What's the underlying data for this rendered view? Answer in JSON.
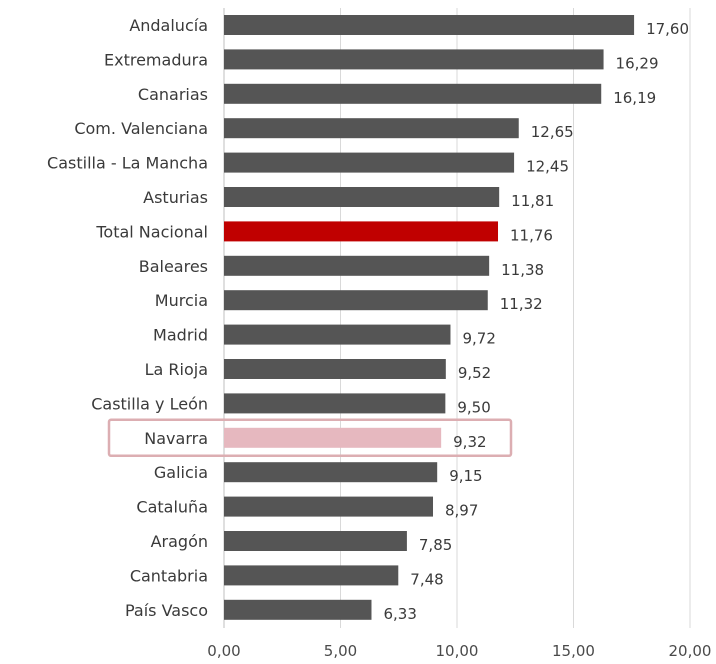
{
  "chart_data": {
    "type": "bar",
    "orientation": "horizontal",
    "categories": [
      "Andalucía",
      "Extremadura",
      "Canarias",
      "Com. Valenciana",
      "Castilla - La Mancha",
      "Asturias",
      "Total Nacional",
      "Baleares",
      "Murcia",
      "Madrid",
      "La Rioja",
      "Castilla y León",
      "Navarra",
      "Galicia",
      "Cataluña",
      "Aragón",
      "Cantabria",
      "País Vasco"
    ],
    "values": [
      17.6,
      16.29,
      16.19,
      12.65,
      12.45,
      11.81,
      11.76,
      11.38,
      11.32,
      9.72,
      9.52,
      9.5,
      9.32,
      9.15,
      8.97,
      7.85,
      7.48,
      6.33
    ],
    "value_labels": [
      "17,60",
      "16,29",
      "16,19",
      "12,65",
      "12,45",
      "11,81",
      "11,76",
      "11,38",
      "11,32",
      "9,72",
      "9,52",
      "9,50",
      "9,32",
      "9,15",
      "8,97",
      "7,85",
      "7,48",
      "6,33"
    ],
    "xlim": [
      0,
      20
    ],
    "xticks": [
      0,
      5,
      10,
      15,
      20
    ],
    "xtick_labels": [
      "0,00",
      "5,00",
      "10,00",
      "15,00",
      "20,00"
    ],
    "title": "",
    "xlabel": "",
    "ylabel": "",
    "grid": "vertical",
    "colors": {
      "default": "#555555",
      "Total Nacional": "#c00000",
      "Navarra": "#e6b8bf"
    },
    "highlight": {
      "category": "Navarra",
      "outline_color": "#dcaeb2"
    }
  }
}
